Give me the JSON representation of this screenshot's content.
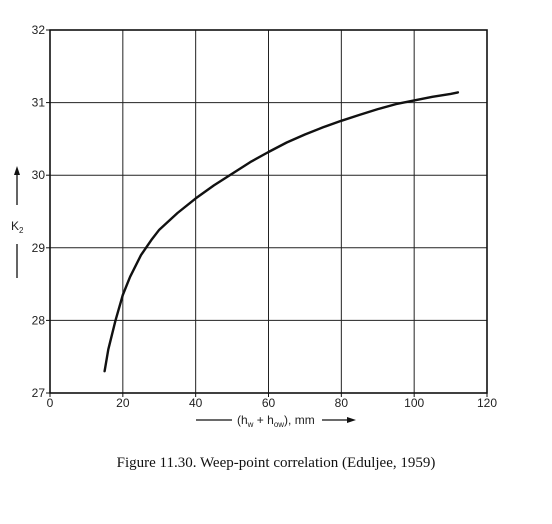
{
  "chart_data": {
    "type": "line",
    "caption": "Figure 11.30.    Weep-point correlation (Eduljee, 1959)",
    "xlabel": {
      "open": "(h",
      "sub1": "w",
      "mid": " + h",
      "sub2": "ow",
      "close": "), mm"
    },
    "ylabel": {
      "base": "K",
      "sub": "2"
    },
    "xlim": [
      0,
      120
    ],
    "ylim": [
      27,
      32
    ],
    "xticks": [
      0,
      20,
      40,
      60,
      80,
      100,
      120
    ],
    "yticks": [
      27,
      28,
      29,
      30,
      31,
      32
    ],
    "grid": true,
    "series": [
      {
        "x": [
          15,
          16,
          18,
          20,
          22,
          25,
          28,
          30,
          35,
          40,
          45,
          50,
          55,
          60,
          65,
          70,
          75,
          80,
          85,
          90,
          95,
          100,
          105,
          110,
          112
        ],
        "y": [
          27.3,
          27.6,
          28.0,
          28.35,
          28.6,
          28.9,
          29.12,
          29.25,
          29.48,
          29.68,
          29.86,
          30.02,
          30.18,
          30.32,
          30.45,
          30.56,
          30.66,
          30.75,
          30.83,
          30.91,
          30.98,
          31.03,
          31.08,
          31.12,
          31.14
        ]
      }
    ]
  }
}
